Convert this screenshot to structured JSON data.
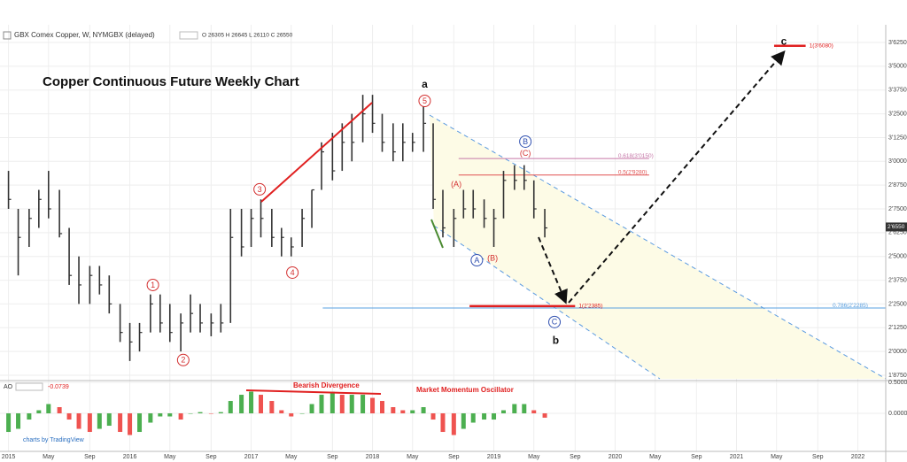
{
  "chart_data": [
    {
      "type": "ohlc",
      "title": "Copper Continuous Future Weekly Chart",
      "symbol": "GBX Comex Copper, W, NYMGBX (delayed)",
      "ohlc_text": "O 26305 H 26645 L 26110 C 26550",
      "color": "#333333",
      "x": [
        2015.0,
        2015.08,
        2015.17,
        2015.25,
        2015.33,
        2015.42,
        2015.5,
        2015.58,
        2015.67,
        2015.75,
        2015.83,
        2015.92,
        2016.0,
        2016.08,
        2016.17,
        2016.25,
        2016.33,
        2016.42,
        2016.5,
        2016.58,
        2016.67,
        2016.75,
        2016.83,
        2016.92,
        2017.0,
        2017.08,
        2017.17,
        2017.25,
        2017.33,
        2017.42,
        2017.5,
        2017.58,
        2017.67,
        2017.75,
        2017.83,
        2017.92,
        2018.0,
        2018.08,
        2018.17,
        2018.25,
        2018.33,
        2018.42,
        2018.5,
        2018.58,
        2018.67,
        2018.75,
        2018.83,
        2018.92,
        2019.0,
        2019.08,
        2019.17,
        2019.25,
        2019.33,
        2019.42
      ],
      "high": [
        2.95,
        2.75,
        2.75,
        2.85,
        2.95,
        2.85,
        2.65,
        2.5,
        2.45,
        2.45,
        2.4,
        2.25,
        2.15,
        2.15,
        2.3,
        2.3,
        2.25,
        2.2,
        2.3,
        2.25,
        2.2,
        2.25,
        2.75,
        2.75,
        2.75,
        2.8,
        2.75,
        2.65,
        2.6,
        2.75,
        2.85,
        3.1,
        3.15,
        3.2,
        3.25,
        3.35,
        3.35,
        3.25,
        3.2,
        3.2,
        3.15,
        3.32,
        3.2,
        2.85,
        2.75,
        2.85,
        2.85,
        2.8,
        2.75,
        2.95,
        2.98,
        2.98,
        2.9,
        2.75
      ],
      "low": [
        2.75,
        2.4,
        2.55,
        2.65,
        2.7,
        2.6,
        2.35,
        2.25,
        2.25,
        2.3,
        2.2,
        2.05,
        1.95,
        2.0,
        2.1,
        2.1,
        2.05,
        2.0,
        2.1,
        2.1,
        2.08,
        2.1,
        2.15,
        2.5,
        2.55,
        2.6,
        2.55,
        2.5,
        2.5,
        2.55,
        2.65,
        2.85,
        2.9,
        2.95,
        3.0,
        3.1,
        3.15,
        3.05,
        3.0,
        3.0,
        3.05,
        3.05,
        2.75,
        2.6,
        2.55,
        2.7,
        2.7,
        2.65,
        2.55,
        2.7,
        2.85,
        2.85,
        2.7,
        2.6
      ],
      "close": [
        2.8,
        2.6,
        2.7,
        2.8,
        2.75,
        2.62,
        2.4,
        2.35,
        2.4,
        2.35,
        2.25,
        2.1,
        2.05,
        2.1,
        2.25,
        2.15,
        2.1,
        2.15,
        2.2,
        2.15,
        2.15,
        2.15,
        2.6,
        2.55,
        2.7,
        2.7,
        2.6,
        2.6,
        2.55,
        2.7,
        2.85,
        3.05,
        2.95,
        3.1,
        3.1,
        3.25,
        3.2,
        3.1,
        3.05,
        3.1,
        3.1,
        3.2,
        2.8,
        2.65,
        2.7,
        2.75,
        2.75,
        2.7,
        2.7,
        2.9,
        2.9,
        2.9,
        2.75,
        2.65
      ],
      "xlim": [
        2014.93,
        2022.23
      ],
      "ylim": [
        1.847,
        3.709
      ],
      "xticks": [
        {
          "value": 2015,
          "label": "2015"
        },
        {
          "value": 2015.33,
          "label": "May"
        },
        {
          "value": 2015.67,
          "label": "Sep"
        },
        {
          "value": 2016,
          "label": "2016"
        },
        {
          "value": 2016.33,
          "label": "May"
        },
        {
          "value": 2016.67,
          "label": "Sep"
        },
        {
          "value": 2017,
          "label": "2017"
        },
        {
          "value": 2017.33,
          "label": "May"
        },
        {
          "value": 2017.67,
          "label": "Sep"
        },
        {
          "value": 2018,
          "label": "2018"
        },
        {
          "value": 2018.33,
          "label": "May"
        },
        {
          "value": 2018.67,
          "label": "Sep"
        },
        {
          "value": 2019,
          "label": "2019"
        },
        {
          "value": 2019.33,
          "label": "May"
        },
        {
          "value": 2019.67,
          "label": "Sep"
        },
        {
          "value": 2020,
          "label": "2020"
        },
        {
          "value": 2020.33,
          "label": "May"
        },
        {
          "value": 2020.67,
          "label": "Sep"
        },
        {
          "value": 2021,
          "label": "2021"
        },
        {
          "value": 2021.33,
          "label": "May"
        },
        {
          "value": 2021.67,
          "label": "Sep"
        },
        {
          "value": 2022,
          "label": "2022"
        }
      ],
      "yticks": [
        {
          "value": 3.625,
          "label": "3'6250"
        },
        {
          "value": 3.5,
          "label": "3'5000"
        },
        {
          "value": 3.375,
          "label": "3'3750"
        },
        {
          "value": 3.25,
          "label": "3'2500"
        },
        {
          "value": 3.125,
          "label": "3'1250"
        },
        {
          "value": 3.0,
          "label": "3'0000"
        },
        {
          "value": 2.875,
          "label": "2'8750"
        },
        {
          "value": 2.75,
          "label": "2'7500"
        },
        {
          "value": 2.625,
          "label": "2'6250"
        },
        {
          "value": 2.5,
          "label": "2'5000"
        },
        {
          "value": 2.375,
          "label": "2'3750"
        },
        {
          "value": 2.25,
          "label": "2'2500"
        },
        {
          "value": 2.125,
          "label": "2'1250"
        },
        {
          "value": 2.0,
          "label": "2'0000"
        },
        {
          "value": 1.875,
          "label": "1'8750"
        }
      ],
      "grid": true,
      "last_price": {
        "value": 2.655,
        "label": "2'6550"
      },
      "levels": [
        {
          "label": "0.618(3'0150)",
          "value": 3.015,
          "from": 2018.71,
          "to": 2020.28,
          "color": "#c678a8",
          "width": 1
        },
        {
          "label": "0.5(2'9280)",
          "value": 2.928,
          "from": 2018.71,
          "to": 2020.28,
          "color": "#e05050",
          "width": 1
        },
        {
          "label": "0.786(2'2285)",
          "value": 2.2285,
          "from": 2017.59,
          "to": 2022.23,
          "color": "#5aa0e0",
          "width": 1
        },
        {
          "label": "1(2'2385)",
          "value": 2.2385,
          "from": 2018.8,
          "to": 2019.67,
          "color": "#e02020",
          "width": 2.5
        },
        {
          "label": "1(3'6080)",
          "value": 3.608,
          "from": 2021.31,
          "to": 2021.57,
          "color": "#e02020",
          "width": 2.5
        }
      ],
      "waves": [
        {
          "label": "1",
          "x": 2016.19,
          "y": 2.35,
          "color": "#d32f2f",
          "circle": true
        },
        {
          "label": "2",
          "x": 2016.44,
          "y": 1.955,
          "color": "#d32f2f",
          "circle": true
        },
        {
          "label": "3",
          "x": 2017.07,
          "y": 2.853,
          "color": "#d32f2f",
          "circle": true
        },
        {
          "label": "4",
          "x": 2017.34,
          "y": 2.415,
          "color": "#d32f2f",
          "circle": true
        },
        {
          "label": "5",
          "x": 2018.43,
          "y": 3.318,
          "color": "#d32f2f",
          "circle": true
        },
        {
          "label": "a",
          "x": 2018.43,
          "y": 3.406,
          "color": "#111111",
          "circle": false
        },
        {
          "label": "(A)",
          "x": 2018.69,
          "y": 2.88,
          "color": "#d32f2f",
          "circle": false
        },
        {
          "label": "(B)",
          "x": 2018.99,
          "y": 2.49,
          "color": "#d32f2f",
          "circle": false
        },
        {
          "label": "(C)",
          "x": 2019.26,
          "y": 3.043,
          "color": "#d32f2f",
          "circle": false
        },
        {
          "label": "A",
          "x": 2018.86,
          "y": 2.48,
          "color": "#3050b0",
          "circle": true
        },
        {
          "label": "B",
          "x": 2019.26,
          "y": 3.104,
          "color": "#3050b0",
          "circle": true
        },
        {
          "label": "C",
          "x": 2019.5,
          "y": 2.155,
          "color": "#3050b0",
          "circle": true
        },
        {
          "label": "b",
          "x": 2019.51,
          "y": 2.057,
          "color": "#111111",
          "circle": false
        },
        {
          "label": "c",
          "x": 2021.39,
          "y": 3.63,
          "color": "#111111",
          "circle": false
        }
      ]
    },
    {
      "type": "bar",
      "name": "AO",
      "value_label": "-0.0739",
      "divergence_label": "Bearish Divergence",
      "oscillator_label": "Market Momentum Oscillator",
      "credit": "charts by TradingView",
      "up_color": "#4caf50",
      "down_color": "#ef5350",
      "x": [
        2015.0,
        2015.08,
        2015.17,
        2015.25,
        2015.33,
        2015.42,
        2015.5,
        2015.58,
        2015.67,
        2015.75,
        2015.83,
        2015.92,
        2016.0,
        2016.08,
        2016.17,
        2016.25,
        2016.33,
        2016.42,
        2016.5,
        2016.58,
        2016.67,
        2016.75,
        2016.83,
        2016.92,
        2017.0,
        2017.08,
        2017.17,
        2017.25,
        2017.33,
        2017.42,
        2017.5,
        2017.58,
        2017.67,
        2017.75,
        2017.83,
        2017.92,
        2018.0,
        2018.08,
        2018.17,
        2018.25,
        2018.33,
        2018.42,
        2018.5,
        2018.58,
        2018.67,
        2018.75,
        2018.83,
        2018.92,
        2019.0,
        2019.08,
        2019.17,
        2019.25,
        2019.33,
        2019.42
      ],
      "values": [
        -0.3,
        -0.25,
        -0.1,
        0.05,
        0.15,
        0.1,
        -0.1,
        -0.25,
        -0.3,
        -0.25,
        -0.2,
        -0.3,
        -0.35,
        -0.3,
        -0.15,
        -0.05,
        -0.05,
        -0.1,
        0.0,
        0.02,
        0.0,
        0.02,
        0.2,
        0.3,
        0.35,
        0.3,
        0.2,
        0.05,
        -0.05,
        0.0,
        0.15,
        0.3,
        0.35,
        0.3,
        0.3,
        0.3,
        0.25,
        0.2,
        0.1,
        0.05,
        0.05,
        0.1,
        -0.1,
        -0.3,
        -0.35,
        -0.25,
        -0.15,
        -0.1,
        -0.1,
        0.05,
        0.15,
        0.15,
        0.05,
        -0.07
      ],
      "ylim": [
        -0.614,
        0.529
      ],
      "yticks": [
        {
          "value": 0.5,
          "label": "0.5000"
        },
        {
          "value": 0,
          "label": "0.0000"
        }
      ]
    }
  ]
}
